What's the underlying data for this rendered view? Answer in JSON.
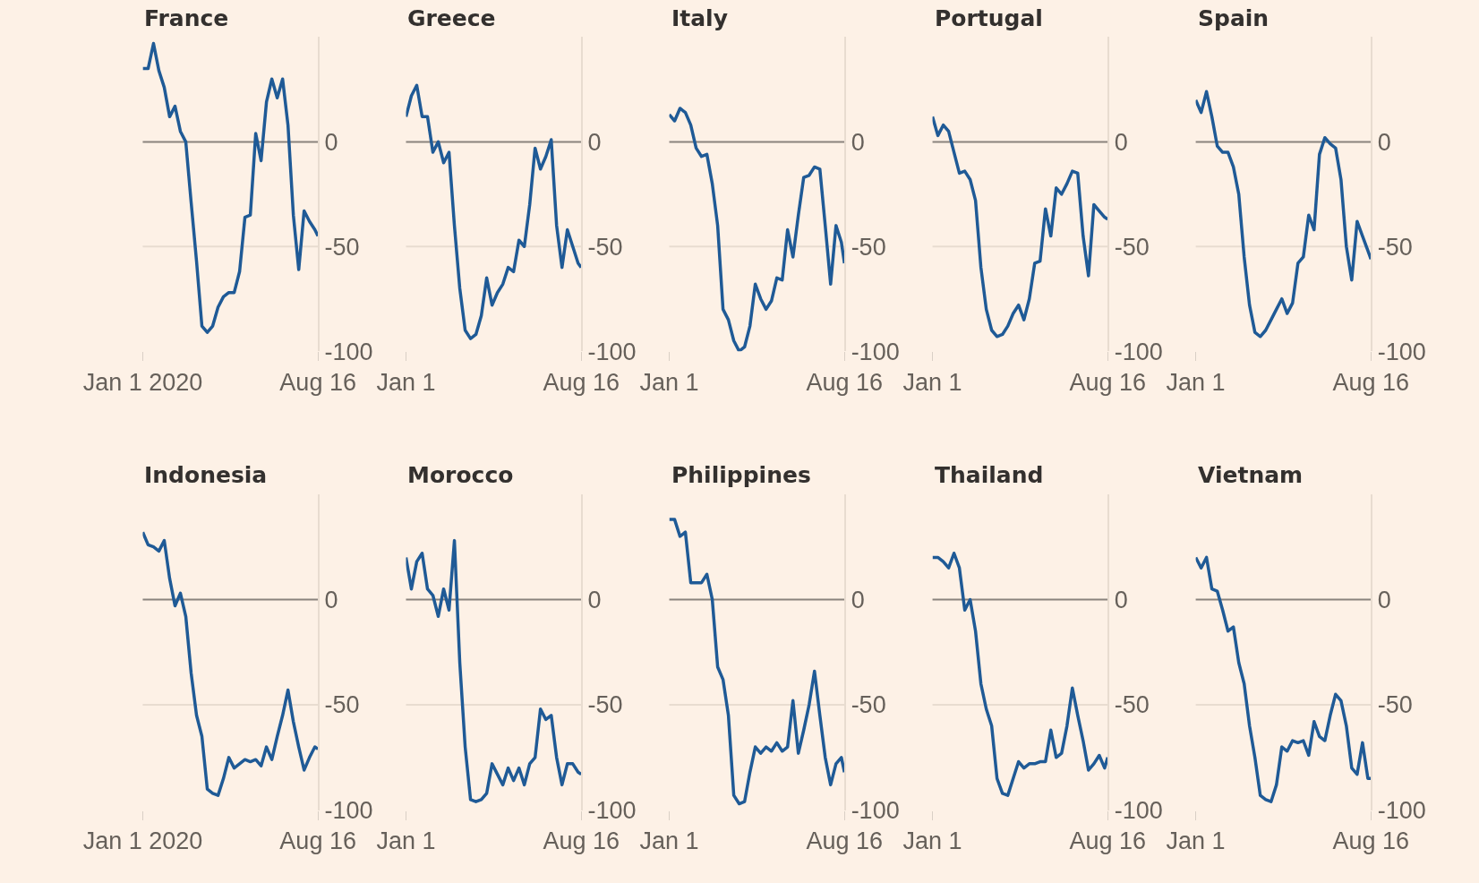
{
  "chart_data": [
    {
      "type": "line",
      "title": "France",
      "ylim": [
        -100,
        50
      ],
      "color": "#1f5a96",
      "x": [
        "2020-01-01",
        "2020-01-08",
        "2020-01-15",
        "2020-01-22",
        "2020-01-29",
        "2020-02-05",
        "2020-02-12",
        "2020-02-19",
        "2020-02-26",
        "2020-03-04",
        "2020-03-11",
        "2020-03-18",
        "2020-03-25",
        "2020-04-01",
        "2020-04-08",
        "2020-04-15",
        "2020-04-22",
        "2020-04-29",
        "2020-05-06",
        "2020-05-13",
        "2020-05-20",
        "2020-05-27",
        "2020-06-03",
        "2020-06-10",
        "2020-06-17",
        "2020-06-24",
        "2020-07-01",
        "2020-07-08",
        "2020-07-15",
        "2020-07-22",
        "2020-07-29",
        "2020-08-05",
        "2020-08-12",
        "2020-08-16"
      ],
      "values": [
        35,
        35,
        47,
        34,
        26,
        12,
        17,
        5,
        0,
        -29,
        -57,
        -88,
        -91,
        -88,
        -79,
        -74,
        -72,
        -72,
        -62,
        -36,
        -35,
        4,
        -9,
        19,
        30,
        21,
        30,
        8,
        -35,
        -61,
        -33,
        -38,
        -42,
        -45
      ],
      "xlim": [
        "2020-01-01",
        "2020-08-16"
      ],
      "xticks": [
        {
          "value": "2020-01-01",
          "label": "Jan 1 2020"
        },
        {
          "value": "2020-08-16",
          "label": "Aug 16"
        }
      ],
      "yticks": [
        0,
        -50,
        -100
      ],
      "ref_lines": [
        {
          "axis": "y",
          "value": 0,
          "color": "#8a837d"
        },
        {
          "axis": "y",
          "value": -50,
          "color": "#e8dcd0"
        }
      ]
    },
    {
      "type": "line",
      "title": "Greece",
      "ylim": [
        -100,
        50
      ],
      "color": "#1f5a96",
      "x": [
        "2020-01-01",
        "2020-01-08",
        "2020-01-15",
        "2020-01-22",
        "2020-01-29",
        "2020-02-05",
        "2020-02-12",
        "2020-02-19",
        "2020-02-26",
        "2020-03-04",
        "2020-03-11",
        "2020-03-18",
        "2020-03-25",
        "2020-04-01",
        "2020-04-08",
        "2020-04-15",
        "2020-04-22",
        "2020-04-29",
        "2020-05-06",
        "2020-05-13",
        "2020-05-20",
        "2020-05-27",
        "2020-06-03",
        "2020-06-10",
        "2020-06-17",
        "2020-06-24",
        "2020-07-01",
        "2020-07-08",
        "2020-07-15",
        "2020-07-22",
        "2020-07-29",
        "2020-08-05",
        "2020-08-12",
        "2020-08-16"
      ],
      "values": [
        12,
        22,
        27,
        12,
        12,
        -5,
        0,
        -10,
        -5,
        -40,
        -70,
        -90,
        -94,
        -92,
        -83,
        -65,
        -78,
        -72,
        -68,
        -60,
        -62,
        -47,
        -50,
        -30,
        -3,
        -13,
        -7,
        1,
        -40,
        -60,
        -42,
        -50,
        -58,
        -60
      ],
      "xlim": [
        "2020-01-01",
        "2020-08-16"
      ],
      "xticks": [
        {
          "value": "2020-01-01",
          "label": "Jan 1"
        },
        {
          "value": "2020-08-16",
          "label": "Aug 16"
        }
      ],
      "yticks": [
        0,
        -50,
        -100
      ],
      "ref_lines": [
        {
          "axis": "y",
          "value": 0,
          "color": "#8a837d"
        },
        {
          "axis": "y",
          "value": -50,
          "color": "#e8dcd0"
        }
      ]
    },
    {
      "type": "line",
      "title": "Italy",
      "ylim": [
        -100,
        50
      ],
      "color": "#1f5a96",
      "x": [
        "2020-01-01",
        "2020-01-08",
        "2020-01-15",
        "2020-01-22",
        "2020-01-29",
        "2020-02-05",
        "2020-02-12",
        "2020-02-19",
        "2020-02-26",
        "2020-03-04",
        "2020-03-11",
        "2020-03-18",
        "2020-03-25",
        "2020-04-01",
        "2020-04-08",
        "2020-04-15",
        "2020-04-22",
        "2020-04-29",
        "2020-05-06",
        "2020-05-13",
        "2020-05-20",
        "2020-05-27",
        "2020-06-03",
        "2020-06-10",
        "2020-06-17",
        "2020-06-24",
        "2020-07-01",
        "2020-07-08",
        "2020-07-15",
        "2020-07-22",
        "2020-07-29",
        "2020-08-05",
        "2020-08-12",
        "2020-08-16"
      ],
      "values": [
        13,
        10,
        16,
        14,
        8,
        -3,
        -7,
        -6,
        -20,
        -40,
        -80,
        -85,
        -95,
        -100,
        -98,
        -88,
        -68,
        -75,
        -80,
        -76,
        -65,
        -66,
        -42,
        -55,
        -35,
        -17,
        -16,
        -12,
        -13,
        -40,
        -68,
        -40,
        -48,
        -58
      ],
      "xlim": [
        "2020-01-01",
        "2020-08-16"
      ],
      "xticks": [
        {
          "value": "2020-01-01",
          "label": "Jan 1"
        },
        {
          "value": "2020-08-16",
          "label": "Aug 16"
        }
      ],
      "yticks": [
        0,
        -50,
        -100
      ],
      "ref_lines": [
        {
          "axis": "y",
          "value": 0,
          "color": "#8a837d"
        },
        {
          "axis": "y",
          "value": -50,
          "color": "#e8dcd0"
        }
      ]
    },
    {
      "type": "line",
      "title": "Portugal",
      "ylim": [
        -100,
        50
      ],
      "color": "#1f5a96",
      "x": [
        "2020-01-01",
        "2020-01-08",
        "2020-01-15",
        "2020-01-22",
        "2020-01-29",
        "2020-02-05",
        "2020-02-12",
        "2020-02-19",
        "2020-02-26",
        "2020-03-04",
        "2020-03-11",
        "2020-03-18",
        "2020-03-25",
        "2020-04-01",
        "2020-04-08",
        "2020-04-15",
        "2020-04-22",
        "2020-04-29",
        "2020-05-06",
        "2020-05-13",
        "2020-05-20",
        "2020-05-27",
        "2020-06-03",
        "2020-06-10",
        "2020-06-17",
        "2020-06-24",
        "2020-07-01",
        "2020-07-08",
        "2020-07-15",
        "2020-07-22",
        "2020-07-29",
        "2020-08-05",
        "2020-08-12",
        "2020-08-16"
      ],
      "values": [
        12,
        3,
        8,
        5,
        -5,
        -15,
        -14,
        -18,
        -28,
        -60,
        -80,
        -90,
        -93,
        -92,
        -88,
        -82,
        -78,
        -85,
        -75,
        -58,
        -57,
        -32,
        -45,
        -22,
        -25,
        -20,
        -14,
        -15,
        -45,
        -64,
        -30,
        -33,
        -36,
        -37
      ],
      "xlim": [
        "2020-01-01",
        "2020-08-16"
      ],
      "xticks": [
        {
          "value": "2020-01-01",
          "label": "Jan 1"
        },
        {
          "value": "2020-08-16",
          "label": "Aug 16"
        }
      ],
      "yticks": [
        0,
        -50,
        -100
      ],
      "ref_lines": [
        {
          "axis": "y",
          "value": 0,
          "color": "#8a837d"
        },
        {
          "axis": "y",
          "value": -50,
          "color": "#e8dcd0"
        }
      ]
    },
    {
      "type": "line",
      "title": "Spain",
      "ylim": [
        -100,
        50
      ],
      "color": "#1f5a96",
      "x": [
        "2020-01-01",
        "2020-01-08",
        "2020-01-15",
        "2020-01-22",
        "2020-01-29",
        "2020-02-05",
        "2020-02-12",
        "2020-02-19",
        "2020-02-26",
        "2020-03-04",
        "2020-03-11",
        "2020-03-18",
        "2020-03-25",
        "2020-04-01",
        "2020-04-08",
        "2020-04-15",
        "2020-04-22",
        "2020-04-29",
        "2020-05-06",
        "2020-05-13",
        "2020-05-20",
        "2020-05-27",
        "2020-06-03",
        "2020-06-10",
        "2020-06-17",
        "2020-06-24",
        "2020-07-01",
        "2020-07-08",
        "2020-07-15",
        "2020-07-22",
        "2020-07-29",
        "2020-08-05",
        "2020-08-12",
        "2020-08-16"
      ],
      "values": [
        20,
        14,
        24,
        12,
        -2,
        -5,
        -5,
        -12,
        -25,
        -55,
        -78,
        -91,
        -93,
        -90,
        -85,
        -80,
        -75,
        -82,
        -77,
        -58,
        -55,
        -35,
        -42,
        -6,
        2,
        -1,
        -3,
        -18,
        -50,
        -66,
        -38,
        -45,
        -52,
        -56
      ],
      "xlim": [
        "2020-01-01",
        "2020-08-16"
      ],
      "xticks": [
        {
          "value": "2020-01-01",
          "label": "Jan 1"
        },
        {
          "value": "2020-08-16",
          "label": "Aug 16"
        }
      ],
      "yticks": [
        0,
        -50,
        -100
      ],
      "ref_lines": [
        {
          "axis": "y",
          "value": 0,
          "color": "#8a837d"
        },
        {
          "axis": "y",
          "value": -50,
          "color": "#e8dcd0"
        }
      ]
    },
    {
      "type": "line",
      "title": "Indonesia",
      "ylim": [
        -100,
        50
      ],
      "color": "#1f5a96",
      "x": [
        "2020-01-01",
        "2020-01-08",
        "2020-01-15",
        "2020-01-22",
        "2020-01-29",
        "2020-02-05",
        "2020-02-12",
        "2020-02-19",
        "2020-02-26",
        "2020-03-04",
        "2020-03-11",
        "2020-03-18",
        "2020-03-25",
        "2020-04-01",
        "2020-04-08",
        "2020-04-15",
        "2020-04-22",
        "2020-04-29",
        "2020-05-06",
        "2020-05-13",
        "2020-05-20",
        "2020-05-27",
        "2020-06-03",
        "2020-06-10",
        "2020-06-17",
        "2020-06-24",
        "2020-07-01",
        "2020-07-08",
        "2020-07-15",
        "2020-07-22",
        "2020-07-29",
        "2020-08-05",
        "2020-08-12",
        "2020-08-16"
      ],
      "values": [
        32,
        26,
        25,
        23,
        28,
        10,
        -3,
        3,
        -8,
        -35,
        -55,
        -65,
        -90,
        -92,
        -93,
        -85,
        -75,
        -80,
        -78,
        -76,
        -77,
        -76,
        -79,
        -70,
        -76,
        -65,
        -55,
        -43,
        -58,
        -70,
        -81,
        -75,
        -70,
        -71
      ],
      "xlim": [
        "2020-01-01",
        "2020-08-16"
      ],
      "xticks": [
        {
          "value": "2020-01-01",
          "label": "Jan 1 2020"
        },
        {
          "value": "2020-08-16",
          "label": "Aug 16"
        }
      ],
      "yticks": [
        0,
        -50,
        -100
      ],
      "ref_lines": [
        {
          "axis": "y",
          "value": 0,
          "color": "#8a837d"
        },
        {
          "axis": "y",
          "value": -50,
          "color": "#e8dcd0"
        }
      ]
    },
    {
      "type": "line",
      "title": "Morocco",
      "ylim": [
        -100,
        50
      ],
      "color": "#1f5a96",
      "x": [
        "2020-01-01",
        "2020-01-08",
        "2020-01-15",
        "2020-01-22",
        "2020-01-29",
        "2020-02-05",
        "2020-02-12",
        "2020-02-19",
        "2020-02-26",
        "2020-03-04",
        "2020-03-11",
        "2020-03-18",
        "2020-03-25",
        "2020-04-01",
        "2020-04-08",
        "2020-04-15",
        "2020-04-22",
        "2020-04-29",
        "2020-05-06",
        "2020-05-13",
        "2020-05-20",
        "2020-05-27",
        "2020-06-03",
        "2020-06-10",
        "2020-06-17",
        "2020-06-24",
        "2020-07-01",
        "2020-07-08",
        "2020-07-15",
        "2020-07-22",
        "2020-07-29",
        "2020-08-05",
        "2020-08-12",
        "2020-08-16"
      ],
      "values": [
        20,
        5,
        18,
        22,
        5,
        2,
        -8,
        5,
        -5,
        28,
        -30,
        -70,
        -95,
        -96,
        -95,
        -92,
        -78,
        -83,
        -88,
        -80,
        -86,
        -80,
        -88,
        -78,
        -75,
        -52,
        -57,
        -55,
        -75,
        -88,
        -78,
        -78,
        -82,
        -83
      ],
      "xlim": [
        "2020-01-01",
        "2020-08-16"
      ],
      "xticks": [
        {
          "value": "2020-01-01",
          "label": "Jan 1"
        },
        {
          "value": "2020-08-16",
          "label": "Aug 16"
        }
      ],
      "yticks": [
        0,
        -50,
        -100
      ],
      "ref_lines": [
        {
          "axis": "y",
          "value": 0,
          "color": "#8a837d"
        },
        {
          "axis": "y",
          "value": -50,
          "color": "#e8dcd0"
        }
      ]
    },
    {
      "type": "line",
      "title": "Philippines",
      "ylim": [
        -100,
        50
      ],
      "color": "#1f5a96",
      "x": [
        "2020-01-01",
        "2020-01-08",
        "2020-01-15",
        "2020-01-22",
        "2020-01-29",
        "2020-02-05",
        "2020-02-12",
        "2020-02-19",
        "2020-02-26",
        "2020-03-04",
        "2020-03-11",
        "2020-03-18",
        "2020-03-25",
        "2020-04-01",
        "2020-04-08",
        "2020-04-15",
        "2020-04-22",
        "2020-04-29",
        "2020-05-06",
        "2020-05-13",
        "2020-05-20",
        "2020-05-27",
        "2020-06-03",
        "2020-06-10",
        "2020-06-17",
        "2020-06-24",
        "2020-07-01",
        "2020-07-08",
        "2020-07-15",
        "2020-07-22",
        "2020-07-29",
        "2020-08-05",
        "2020-08-12",
        "2020-08-16"
      ],
      "values": [
        38,
        38,
        30,
        32,
        8,
        8,
        8,
        12,
        0,
        -32,
        -38,
        -55,
        -93,
        -97,
        -96,
        -82,
        -70,
        -73,
        -70,
        -72,
        -68,
        -72,
        -70,
        -48,
        -73,
        -62,
        -50,
        -34,
        -55,
        -75,
        -88,
        -78,
        -75,
        -82
      ],
      "xlim": [
        "2020-01-01",
        "2020-08-16"
      ],
      "xticks": [
        {
          "value": "2020-01-01",
          "label": "Jan 1"
        },
        {
          "value": "2020-08-16",
          "label": "Aug 16"
        }
      ],
      "yticks": [
        0,
        -50,
        -100
      ],
      "ref_lines": [
        {
          "axis": "y",
          "value": 0,
          "color": "#8a837d"
        },
        {
          "axis": "y",
          "value": -50,
          "color": "#e8dcd0"
        }
      ]
    },
    {
      "type": "line",
      "title": "Thailand",
      "ylim": [
        -100,
        50
      ],
      "color": "#1f5a96",
      "x": [
        "2020-01-01",
        "2020-01-08",
        "2020-01-15",
        "2020-01-22",
        "2020-01-29",
        "2020-02-05",
        "2020-02-12",
        "2020-02-19",
        "2020-02-26",
        "2020-03-04",
        "2020-03-11",
        "2020-03-18",
        "2020-03-25",
        "2020-04-01",
        "2020-04-08",
        "2020-04-15",
        "2020-04-22",
        "2020-04-29",
        "2020-05-06",
        "2020-05-13",
        "2020-05-20",
        "2020-05-27",
        "2020-06-03",
        "2020-06-10",
        "2020-06-17",
        "2020-06-24",
        "2020-07-01",
        "2020-07-08",
        "2020-07-15",
        "2020-07-22",
        "2020-07-29",
        "2020-08-05",
        "2020-08-12",
        "2020-08-16"
      ],
      "values": [
        20,
        20,
        18,
        15,
        22,
        15,
        -5,
        0,
        -15,
        -40,
        -52,
        -60,
        -85,
        -92,
        -93,
        -85,
        -77,
        -80,
        -78,
        -78,
        -77,
        -77,
        -62,
        -75,
        -73,
        -60,
        -42,
        -55,
        -67,
        -81,
        -78,
        -74,
        -80,
        -75
      ],
      "xlim": [
        "2020-01-01",
        "2020-08-16"
      ],
      "xticks": [
        {
          "value": "2020-01-01",
          "label": "Jan 1"
        },
        {
          "value": "2020-08-16",
          "label": "Aug 16"
        }
      ],
      "yticks": [
        0,
        -50,
        -100
      ],
      "ref_lines": [
        {
          "axis": "y",
          "value": 0,
          "color": "#8a837d"
        },
        {
          "axis": "y",
          "value": -50,
          "color": "#e8dcd0"
        }
      ]
    },
    {
      "type": "line",
      "title": "Vietnam",
      "ylim": [
        -100,
        50
      ],
      "color": "#1f5a96",
      "x": [
        "2020-01-01",
        "2020-01-08",
        "2020-01-15",
        "2020-01-22",
        "2020-01-29",
        "2020-02-05",
        "2020-02-12",
        "2020-02-19",
        "2020-02-26",
        "2020-03-04",
        "2020-03-11",
        "2020-03-18",
        "2020-03-25",
        "2020-04-01",
        "2020-04-08",
        "2020-04-15",
        "2020-04-22",
        "2020-04-29",
        "2020-05-06",
        "2020-05-13",
        "2020-05-20",
        "2020-05-27",
        "2020-06-03",
        "2020-06-10",
        "2020-06-17",
        "2020-06-24",
        "2020-07-01",
        "2020-07-08",
        "2020-07-15",
        "2020-07-22",
        "2020-07-29",
        "2020-08-05",
        "2020-08-12",
        "2020-08-16"
      ],
      "values": [
        20,
        15,
        20,
        5,
        4,
        -5,
        -15,
        -13,
        -30,
        -40,
        -60,
        -75,
        -93,
        -95,
        -96,
        -88,
        -70,
        -72,
        -67,
        -68,
        -67,
        -74,
        -58,
        -65,
        -67,
        -55,
        -45,
        -48,
        -60,
        -80,
        -83,
        -68,
        -85,
        -85
      ],
      "xlim": [
        "2020-01-01",
        "2020-08-16"
      ],
      "xticks": [
        {
          "value": "2020-01-01",
          "label": "Jan 1"
        },
        {
          "value": "2020-08-16",
          "label": "Aug 16"
        }
      ],
      "yticks": [
        0,
        -50,
        -100
      ],
      "ref_lines": [
        {
          "axis": "y",
          "value": 0,
          "color": "#8a837d"
        },
        {
          "axis": "y",
          "value": -50,
          "color": "#e8dcd0"
        }
      ]
    }
  ]
}
